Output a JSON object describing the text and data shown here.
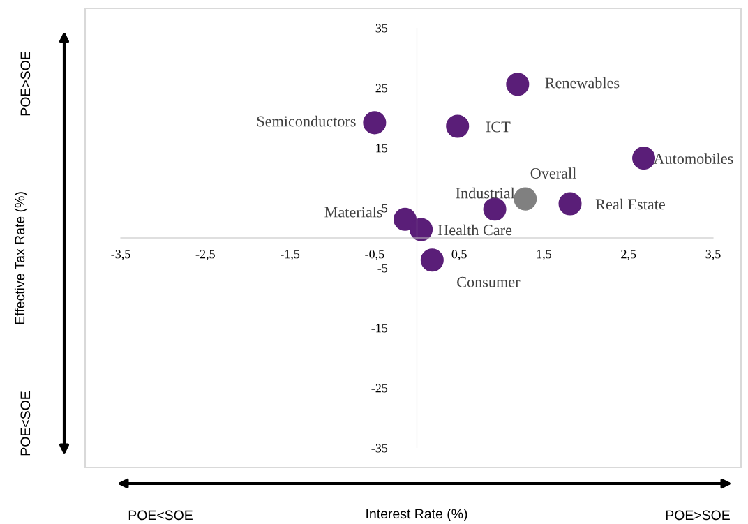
{
  "chart_data": {
    "type": "scatter",
    "xlabel": "Interest Rate (%)",
    "xlim": [
      -3.5,
      3.5
    ],
    "ylim": [
      -35,
      35
    ],
    "xticks": [
      {
        "value": -3.5,
        "label": "-3,5"
      },
      {
        "value": -2.5,
        "label": "-2,5"
      },
      {
        "value": -1.5,
        "label": "-1,5"
      },
      {
        "value": -0.5,
        "label": "-0,5"
      },
      {
        "value": 0.5,
        "label": "0,5"
      },
      {
        "value": 1.5,
        "label": "1,5"
      },
      {
        "value": 2.5,
        "label": "2,5"
      },
      {
        "value": 3.5,
        "label": "3,5"
      }
    ],
    "yticks": [
      -35,
      -25,
      -15,
      -5,
      5,
      15,
      25,
      35
    ],
    "grid": false,
    "legend": false,
    "marker": "circle",
    "series": [
      {
        "name": "Renewables",
        "color": "#5a1e78",
        "x": [
          1.19
        ],
        "values": [
          25.6
        ]
      },
      {
        "name": "Semiconductors",
        "color": "#5a1e78",
        "x": [
          -0.5
        ],
        "values": [
          19.2
        ]
      },
      {
        "name": "ICT",
        "color": "#5a1e78",
        "x": [
          0.48
        ],
        "values": [
          18.6
        ]
      },
      {
        "name": "Automobiles",
        "color": "#5a1e78",
        "x": [
          2.68
        ],
        "values": [
          13.3
        ]
      },
      {
        "name": "Overall",
        "color": "#808080",
        "x": [
          1.28
        ],
        "values": [
          6.5
        ]
      },
      {
        "name": "Industrial",
        "color": "#5a1e78",
        "x": [
          0.92
        ],
        "values": [
          4.8
        ]
      },
      {
        "name": "Real Estate",
        "color": "#5a1e78",
        "x": [
          1.81
        ],
        "values": [
          5.7
        ]
      },
      {
        "name": "Materials",
        "color": "#5a1e78",
        "x": [
          -0.14
        ],
        "values": [
          3.1
        ]
      },
      {
        "name": "Health Care",
        "color": "#5a1e78",
        "x": [
          0.05
        ],
        "values": [
          1.4
        ]
      },
      {
        "name": "Consumer",
        "color": "#5a1e78",
        "x": [
          0.18
        ],
        "values": [
          -3.7
        ]
      }
    ],
    "annotations": [
      "POE>SOE",
      "POE<SOE",
      "POE<SOE",
      "POE>SOE",
      "Effective Tax Rate (%)"
    ]
  }
}
